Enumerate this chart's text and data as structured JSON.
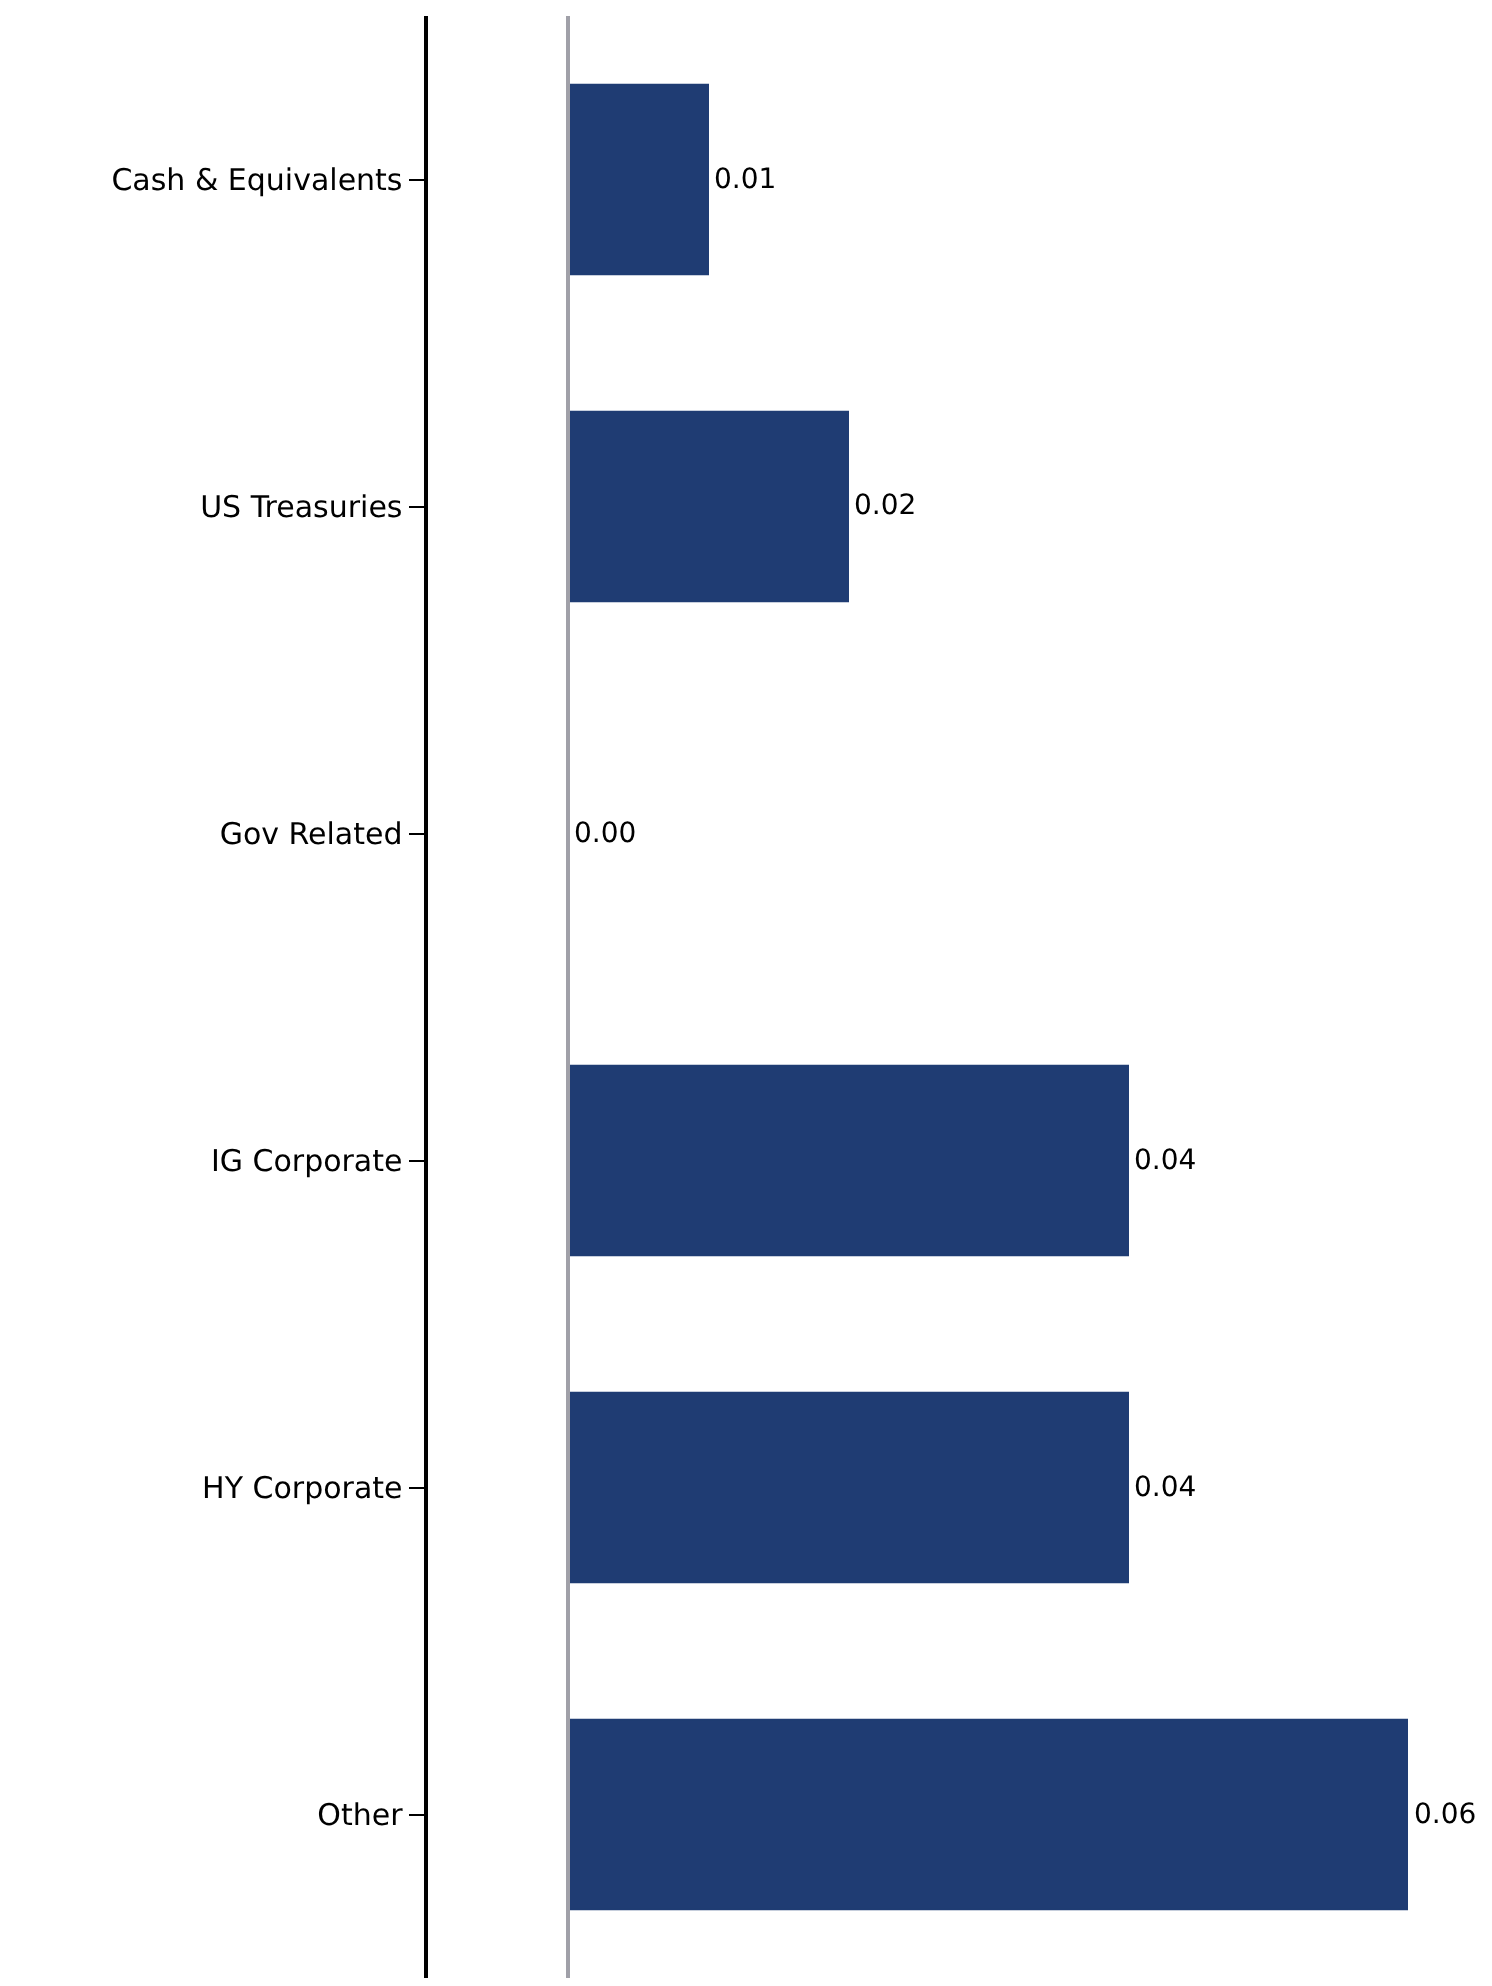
{
  "chart_data": {
    "type": "bar",
    "orientation": "horizontal",
    "categories": [
      "Cash & Equivalents",
      "US Treasuries",
      "Gov Related",
      "IG Corporate",
      "HY Corporate",
      "Other"
    ],
    "values": [
      0.01,
      0.02,
      0.0,
      0.04,
      0.04,
      0.06
    ],
    "color": "#1f3c73",
    "xlim": [
      -0.01,
      0.06
    ],
    "tick_labels": "y",
    "value_labels": [
      "0.01",
      "0.02",
      "0.00",
      "0.04",
      "0.04",
      "0.06"
    ],
    "legend": false,
    "ref_lines": [
      {
        "axis": "x",
        "value": 0,
        "color": "#a0a0a8"
      }
    ]
  }
}
